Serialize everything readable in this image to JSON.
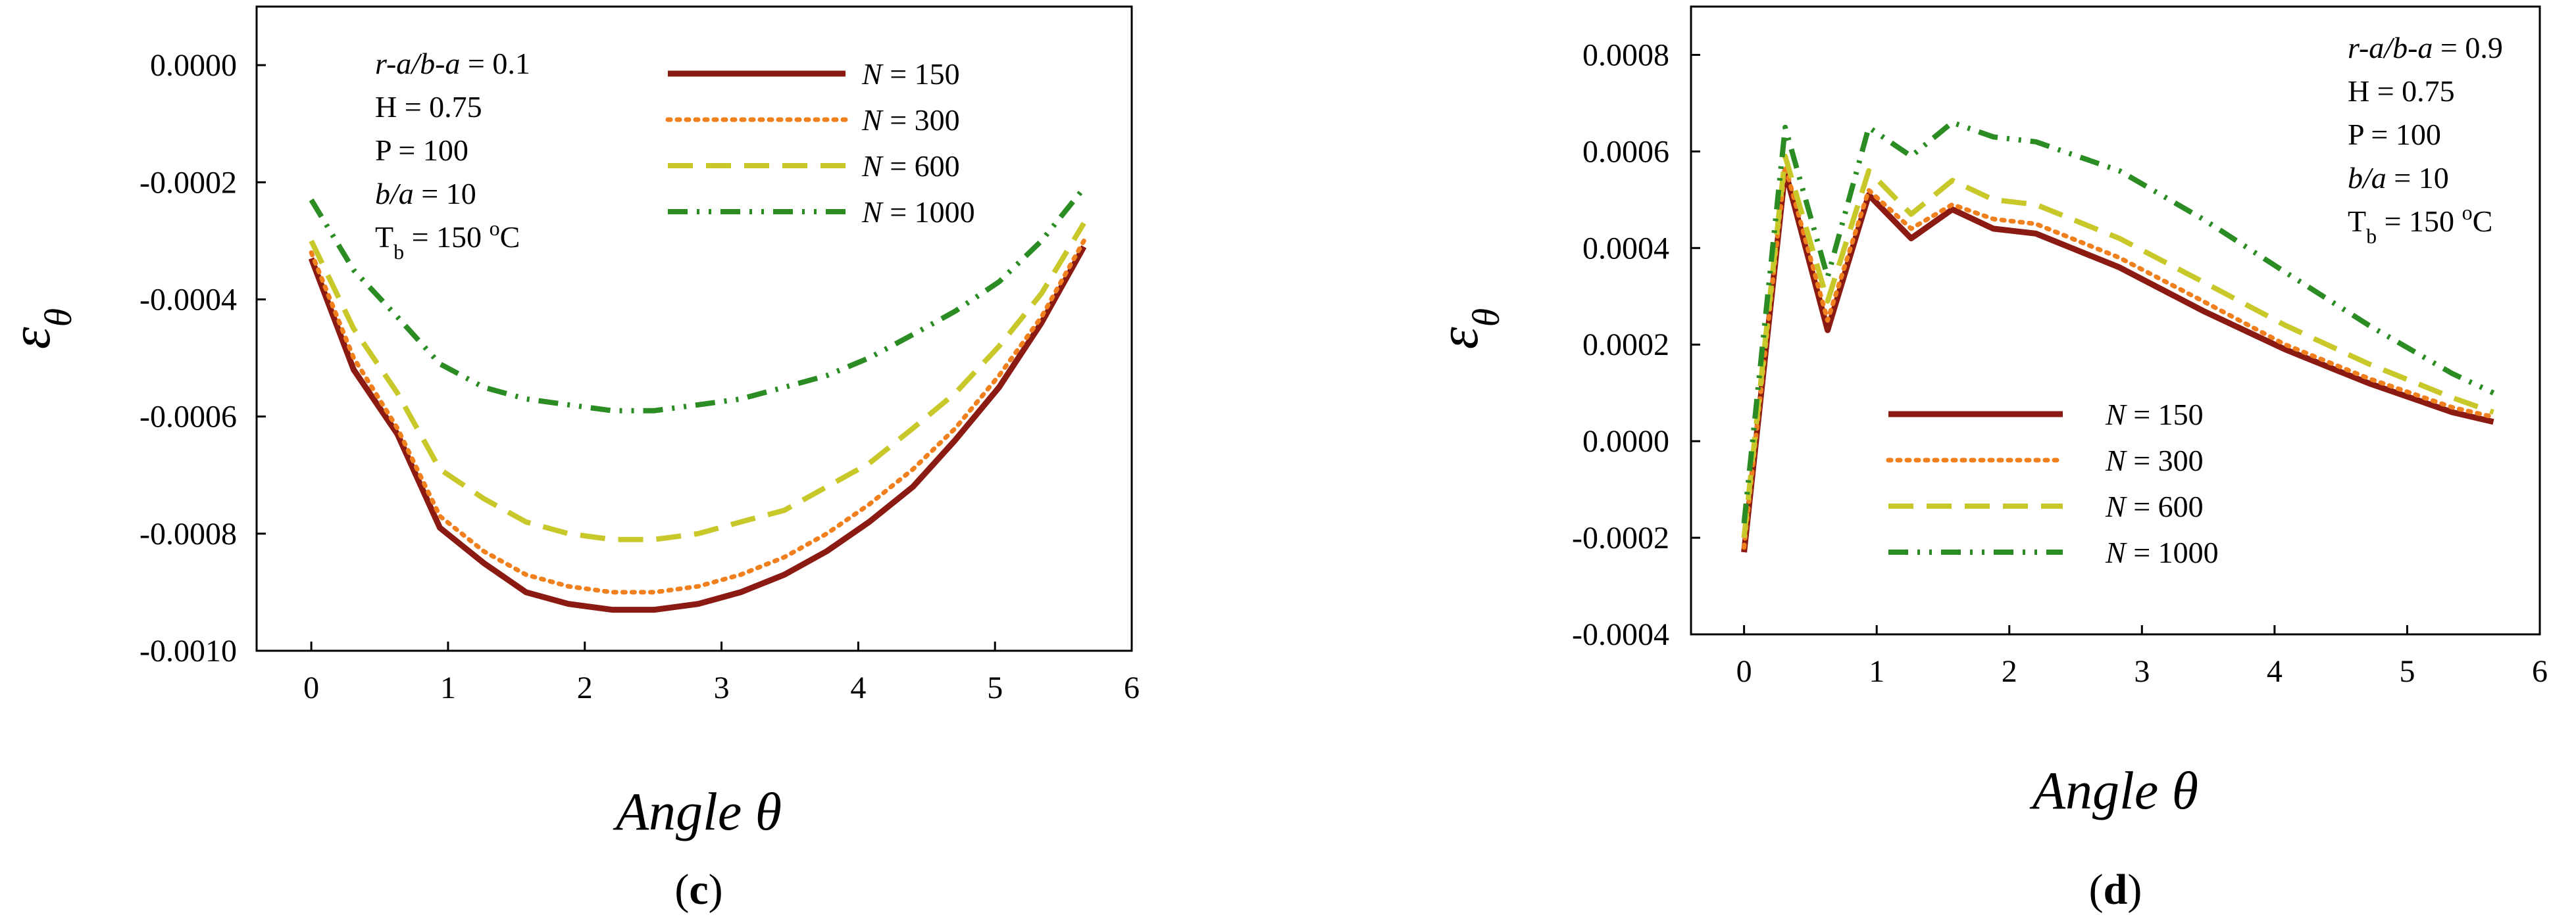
{
  "colors": {
    "N150": "#8B1A12",
    "N300": "#F07F1E",
    "N600": "#C8C82A",
    "N1000": "#2A8C22"
  },
  "chart_data": [
    {
      "type": "line",
      "panel_label": {
        "open": "(",
        "letter": "c",
        "close": ")"
      },
      "xlabel": {
        "text": "Angle ",
        "symbol": "θ"
      },
      "ylabel": {
        "main": "ε",
        "sub": "θ"
      },
      "xlim": [
        -0.4,
        6
      ],
      "ylim": [
        -0.001,
        0.0001
      ],
      "xticks": [
        {
          "value": 0,
          "label": "0"
        },
        {
          "value": 1,
          "label": "1"
        },
        {
          "value": 2,
          "label": "2"
        },
        {
          "value": 3,
          "label": "3"
        },
        {
          "value": 4,
          "label": "4"
        },
        {
          "value": 5,
          "label": "5"
        },
        {
          "value": 6,
          "label": "6"
        }
      ],
      "yticks": [
        {
          "value": 0,
          "label": "0.0000"
        },
        {
          "value": -0.0002,
          "label": "-0.0002"
        },
        {
          "value": -0.0004,
          "label": "-0.0004"
        },
        {
          "value": -0.0006,
          "label": "-0.0006"
        },
        {
          "value": -0.0008,
          "label": "-0.0008"
        },
        {
          "value": -0.001,
          "label": "-0.0010"
        }
      ],
      "x": [
        0,
        0.31,
        0.63,
        0.94,
        1.26,
        1.57,
        1.88,
        2.2,
        2.51,
        2.83,
        3.14,
        3.46,
        3.77,
        4.08,
        4.4,
        4.71,
        5.03,
        5.34,
        5.65
      ],
      "series": [
        {
          "name": {
            "var": "N",
            "rest": " = 150"
          },
          "style": "solid",
          "color_key": "N150",
          "values": [
            -0.00033,
            -0.00052,
            -0.00063,
            -0.00079,
            -0.00085,
            -0.0009,
            -0.00092,
            -0.00093,
            -0.00093,
            -0.00092,
            -0.0009,
            -0.00087,
            -0.00083,
            -0.00078,
            -0.00072,
            -0.00064,
            -0.00055,
            -0.00044,
            -0.00031
          ]
        },
        {
          "name": {
            "var": "N",
            "rest": " = 300"
          },
          "style": "dotted",
          "color_key": "N300",
          "values": [
            -0.00032,
            -0.0005,
            -0.00062,
            -0.00077,
            -0.00083,
            -0.00087,
            -0.00089,
            -0.0009,
            -0.0009,
            -0.00089,
            -0.00087,
            -0.00084,
            -0.0008,
            -0.00075,
            -0.00069,
            -0.00062,
            -0.00053,
            -0.00043,
            -0.0003
          ]
        },
        {
          "name": {
            "var": "N",
            "rest": " = 600"
          },
          "style": "dashed",
          "color_key": "N600",
          "values": [
            -0.0003,
            -0.00045,
            -0.00056,
            -0.00069,
            -0.00074,
            -0.00078,
            -0.0008,
            -0.00081,
            -0.00081,
            -0.0008,
            -0.00078,
            -0.00076,
            -0.00072,
            -0.00068,
            -0.00062,
            -0.00056,
            -0.00048,
            -0.00039,
            -0.00027
          ]
        },
        {
          "name": {
            "var": "N",
            "rest": " = 1000"
          },
          "style": "dashdotdot",
          "color_key": "N1000",
          "values": [
            -0.00023,
            -0.00035,
            -0.00043,
            -0.00051,
            -0.00055,
            -0.00057,
            -0.00058,
            -0.00059,
            -0.00059,
            -0.00058,
            -0.00057,
            -0.00055,
            -0.00053,
            -0.0005,
            -0.00046,
            -0.00042,
            -0.00037,
            -0.0003,
            -0.00021
          ]
        }
      ],
      "annotations": [
        {
          "main": "r-a/b-a",
          "rest": " = 0.1",
          "italic_main": true
        },
        {
          "main": "H",
          "rest": " = 0.75",
          "italic_main": false
        },
        {
          "main": "P",
          "rest": " = 100",
          "italic_main": false
        },
        {
          "main": "b/a",
          "rest": " = 10",
          "italic_main": true
        },
        {
          "main": "T",
          "sub": "b",
          "rest": " = 150 ",
          "sup": "o",
          "tail": "C",
          "italic_main": false
        }
      ],
      "grid": false,
      "legend_position": "top-center"
    },
    {
      "type": "line",
      "panel_label": {
        "open": "(",
        "letter": "d",
        "close": ")"
      },
      "xlabel": {
        "text": "Angle ",
        "symbol": "θ"
      },
      "ylabel": {
        "main": "ε",
        "sub": "θ"
      },
      "xlim": [
        -0.4,
        6
      ],
      "ylim": [
        -0.0004,
        0.0009
      ],
      "xticks": [
        {
          "value": 0,
          "label": "0"
        },
        {
          "value": 1,
          "label": "1"
        },
        {
          "value": 2,
          "label": "2"
        },
        {
          "value": 3,
          "label": "3"
        },
        {
          "value": 4,
          "label": "4"
        },
        {
          "value": 5,
          "label": "5"
        },
        {
          "value": 6,
          "label": "6"
        }
      ],
      "yticks": [
        {
          "value": 0.0008,
          "label": "0.0008"
        },
        {
          "value": 0.0006,
          "label": "0.0006"
        },
        {
          "value": 0.0004,
          "label": "0.0004"
        },
        {
          "value": 0.0002,
          "label": "0.0002"
        },
        {
          "value": 0,
          "label": "0.0000"
        },
        {
          "value": -0.0002,
          "label": "-0.0002"
        },
        {
          "value": -0.0004,
          "label": "-0.0004"
        }
      ],
      "x": [
        0,
        0.31,
        0.63,
        0.94,
        1.26,
        1.57,
        1.88,
        2.2,
        2.83,
        3.46,
        4.08,
        4.71,
        5.34,
        5.65
      ],
      "series": [
        {
          "name": {
            "var": "N",
            "rest": " = 150"
          },
          "style": "solid",
          "color_key": "N150",
          "values": [
            -0.00023,
            0.00056,
            0.00023,
            0.00051,
            0.00042,
            0.00048,
            0.00044,
            0.00043,
            0.00036,
            0.00027,
            0.00019,
            0.00012,
            6e-05,
            4e-05
          ]
        },
        {
          "name": {
            "var": "N",
            "rest": " = 300"
          },
          "style": "dotted",
          "color_key": "N300",
          "values": [
            -0.00022,
            0.00057,
            0.00025,
            0.00052,
            0.00044,
            0.00049,
            0.00046,
            0.00045,
            0.00038,
            0.00029,
            0.0002,
            0.00013,
            7e-05,
            5e-05
          ]
        },
        {
          "name": {
            "var": "N",
            "rest": " = 600"
          },
          "style": "dashed",
          "color_key": "N600",
          "values": [
            -0.0002,
            0.00059,
            0.00029,
            0.00056,
            0.00047,
            0.00054,
            0.0005,
            0.00049,
            0.00042,
            0.00033,
            0.00024,
            0.00016,
            9e-05,
            6e-05
          ]
        },
        {
          "name": {
            "var": "N",
            "rest": " = 1000"
          },
          "style": "dashdotdot",
          "color_key": "N1000",
          "values": [
            -0.00017,
            0.00065,
            0.00034,
            0.00065,
            0.00059,
            0.00066,
            0.00063,
            0.00062,
            0.00056,
            0.00046,
            0.00035,
            0.00024,
            0.00014,
            0.0001
          ]
        }
      ],
      "annotations": [
        {
          "main": "r-a/b-a",
          "rest": " = 0.9",
          "italic_main": true
        },
        {
          "main": "H",
          "rest": " = 0.75",
          "italic_main": false
        },
        {
          "main": "P",
          "rest": " = 100",
          "italic_main": false
        },
        {
          "main": "b/a",
          "rest": " = 10",
          "italic_main": true
        },
        {
          "main": "T",
          "sub": "b",
          "rest": " = 150 ",
          "sup": "o",
          "tail": "C",
          "italic_main": false
        }
      ],
      "grid": false,
      "legend_position": "bottom-center"
    }
  ]
}
